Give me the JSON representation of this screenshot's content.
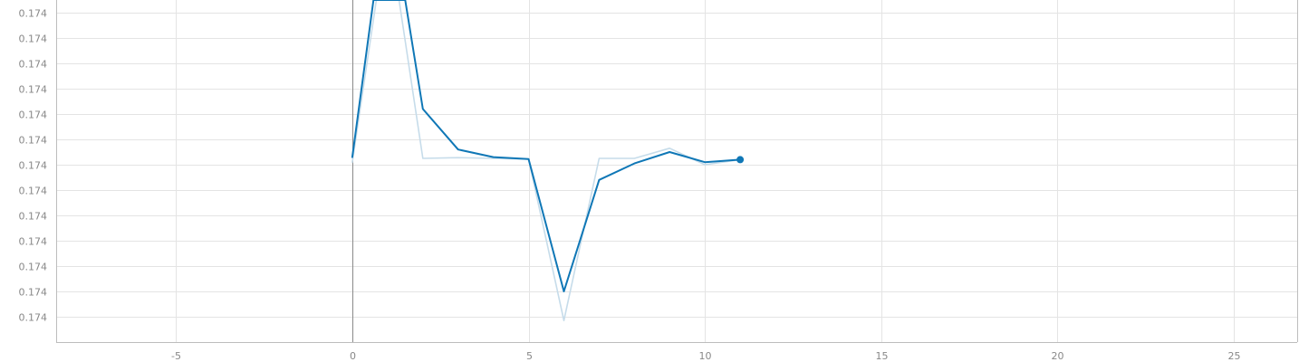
{
  "chart_data": {
    "type": "line",
    "title": "",
    "xlabel": "",
    "ylabel": "",
    "xlim": [
      -8.4,
      26.8
    ],
    "ylim": [
      0,
      13.5
    ],
    "grid": true,
    "legend": "none",
    "x_ticks": [
      {
        "value": -5,
        "label": "-5"
      },
      {
        "value": 0,
        "label": "0"
      },
      {
        "value": 5,
        "label": "5"
      },
      {
        "value": 10,
        "label": "10"
      },
      {
        "value": 15,
        "label": "15"
      },
      {
        "value": 20,
        "label": "20"
      },
      {
        "value": 25,
        "label": "25"
      }
    ],
    "y_ticks": [
      {
        "value": 1,
        "label": "0.174"
      },
      {
        "value": 2,
        "label": "0.174"
      },
      {
        "value": 3,
        "label": "0.174"
      },
      {
        "value": 4,
        "label": "0.174"
      },
      {
        "value": 5,
        "label": "0.174"
      },
      {
        "value": 6,
        "label": "0.174"
      },
      {
        "value": 7,
        "label": "0.174"
      },
      {
        "value": 8,
        "label": "0.174"
      },
      {
        "value": 9,
        "label": "0.174"
      },
      {
        "value": 10,
        "label": "0.174"
      },
      {
        "value": 11,
        "label": "0.174"
      },
      {
        "value": 12,
        "label": "0.174"
      },
      {
        "value": 13,
        "label": "0.174"
      }
    ],
    "series": [
      {
        "role": "raw",
        "color": "#c6dcea",
        "x": [
          0,
          1,
          2,
          3,
          4,
          5,
          6,
          7,
          8,
          9,
          10,
          11
        ],
        "y": [
          7.1,
          16.5,
          7.25,
          7.28,
          7.25,
          7.22,
          0.85,
          7.25,
          7.25,
          7.65,
          7.0,
          7.2
        ]
      },
      {
        "role": "smoothed",
        "color": "#0f77b6",
        "x": [
          0,
          0.6,
          1.5,
          2,
          3,
          4,
          5,
          6,
          7,
          8,
          9,
          10,
          11
        ],
        "y": [
          7.3,
          13.5,
          13.5,
          9.2,
          7.6,
          7.3,
          7.22,
          2.0,
          6.4,
          7.05,
          7.5,
          7.1,
          7.2
        ],
        "end_marker": true
      }
    ]
  }
}
